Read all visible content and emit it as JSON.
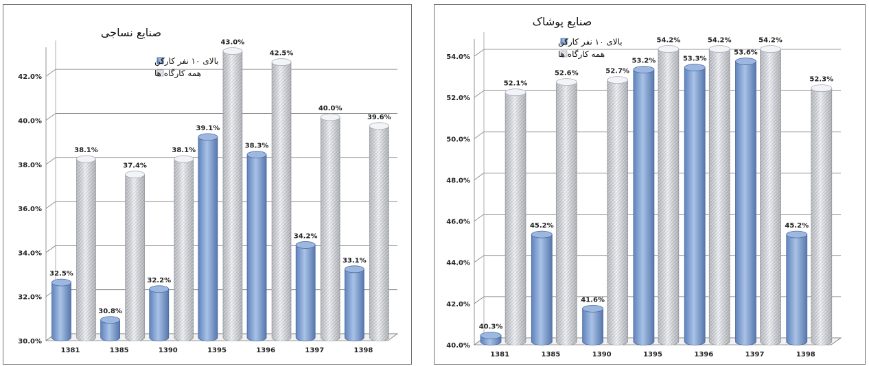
{
  "chart_data": [
    {
      "type": "bar",
      "title": "صنایع نساجی",
      "categories": [
        "1381",
        "1385",
        "1390",
        "1395",
        "1396",
        "1397",
        "1398"
      ],
      "series": [
        {
          "name": "بالای ۱۰ نفر کارکن",
          "values": [
            32.5,
            30.8,
            32.2,
            39.1,
            38.3,
            34.2,
            33.1
          ],
          "labels": [
            "32.5%",
            "30.8%",
            "32.2%",
            "39.1%",
            "38.3%",
            "34.2%",
            "33.1%"
          ],
          "color": "#7c9fd2"
        },
        {
          "name": "همه کارگاه ها",
          "values": [
            38.1,
            37.4,
            38.1,
            43.0,
            42.5,
            40.0,
            39.6
          ],
          "labels": [
            "38.1%",
            "37.4%",
            "38.1%",
            "43.0%",
            "42.5%",
            "40.0%",
            "39.6%"
          ],
          "color": "#e6e9ee"
        }
      ],
      "yticks": [
        30,
        32,
        34,
        36,
        38,
        40,
        42
      ],
      "ytick_labels": [
        "30.0%",
        "32.0%",
        "34.0%",
        "36.0%",
        "38.0%",
        "40.0%",
        "42.0%"
      ],
      "ylim": [
        30,
        43
      ],
      "grid": true,
      "legend": "top-left"
    },
    {
      "type": "bar",
      "title": "صنایع پوشاک",
      "categories": [
        "1381",
        "1385",
        "1390",
        "1395",
        "1396",
        "1397",
        "1398"
      ],
      "series": [
        {
          "name": "بالای ۱۰ نفر کارکن",
          "values": [
            40.3,
            45.2,
            41.6,
            53.2,
            53.3,
            53.6,
            45.2
          ],
          "labels": [
            "40.3%",
            "45.2%",
            "41.6%",
            "53.2%",
            "53.3%",
            "53.6%",
            "45.2%"
          ],
          "color": "#7c9fd2"
        },
        {
          "name": "همه کارگاه ها",
          "values": [
            52.1,
            52.6,
            52.7,
            54.2,
            54.2,
            54.2,
            52.3
          ],
          "labels": [
            "52.1%",
            "52.6%",
            "52.7%",
            "54.2%",
            "54.2%",
            "54.2%",
            "52.3%"
          ],
          "color": "#e6e9ee"
        }
      ],
      "yticks": [
        40,
        42,
        44,
        46,
        48,
        50,
        52,
        54
      ],
      "ytick_labels": [
        "40.0%",
        "42.0%",
        "44.0%",
        "46.0%",
        "48.0%",
        "50.0%",
        "52.0%",
        "54.0%"
      ],
      "ylim": [
        40,
        54.5
      ],
      "grid": true,
      "legend": "top-left"
    }
  ]
}
